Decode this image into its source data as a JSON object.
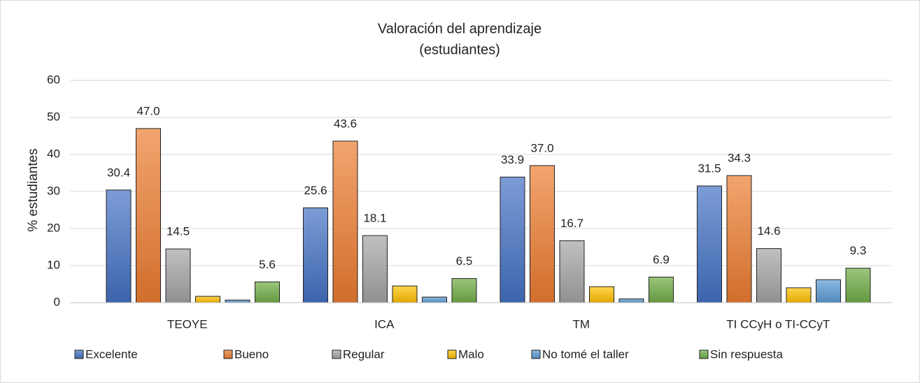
{
  "chart_data": {
    "type": "bar",
    "title": [
      "Valoración del aprendizaje",
      "(estudiantes)"
    ],
    "y_label": "% estudiantes",
    "categories": [
      "TEOYE",
      "ICA",
      "TM",
      "TI CCyH o TI-CCyT"
    ],
    "series": [
      {
        "name": "Excelente",
        "color": "#4472c4",
        "values": [
          30.4,
          25.6,
          33.9,
          31.5
        ],
        "value_labels": [
          "30.4",
          "25.6",
          "33.9",
          "31.5"
        ]
      },
      {
        "name": "Bueno",
        "color": "#ed7d31",
        "values": [
          47,
          43.6,
          37,
          34.3
        ],
        "value_labels": [
          "47.0",
          "43.6",
          "37.0",
          "34.3"
        ]
      },
      {
        "name": "Regular",
        "color": "#a5a5a5",
        "values": [
          14.5,
          18.1,
          16.7,
          14.6
        ],
        "value_labels": [
          "14.5",
          "18.1",
          "16.7",
          "14.6"
        ]
      },
      {
        "name": "Malo",
        "color": "#ffc000",
        "values": [
          1.7,
          4.5,
          4.3,
          4.0
        ]
      },
      {
        "name": "No tomé el taller",
        "color": "#5b9bd5",
        "values": [
          0.7,
          1.5,
          1.0,
          6.2
        ]
      },
      {
        "name": "Sin respuesta",
        "color": "#70ad47",
        "values": [
          5.6,
          6.5,
          6.9,
          9.3
        ],
        "value_labels": [
          "5.6",
          "6.5",
          "6.9",
          "9.3"
        ]
      }
    ],
    "ylim": [
      0,
      60
    ],
    "yticks": [
      0,
      10,
      20,
      30,
      40,
      50,
      60
    ],
    "grid": true,
    "legend": "bottom"
  }
}
